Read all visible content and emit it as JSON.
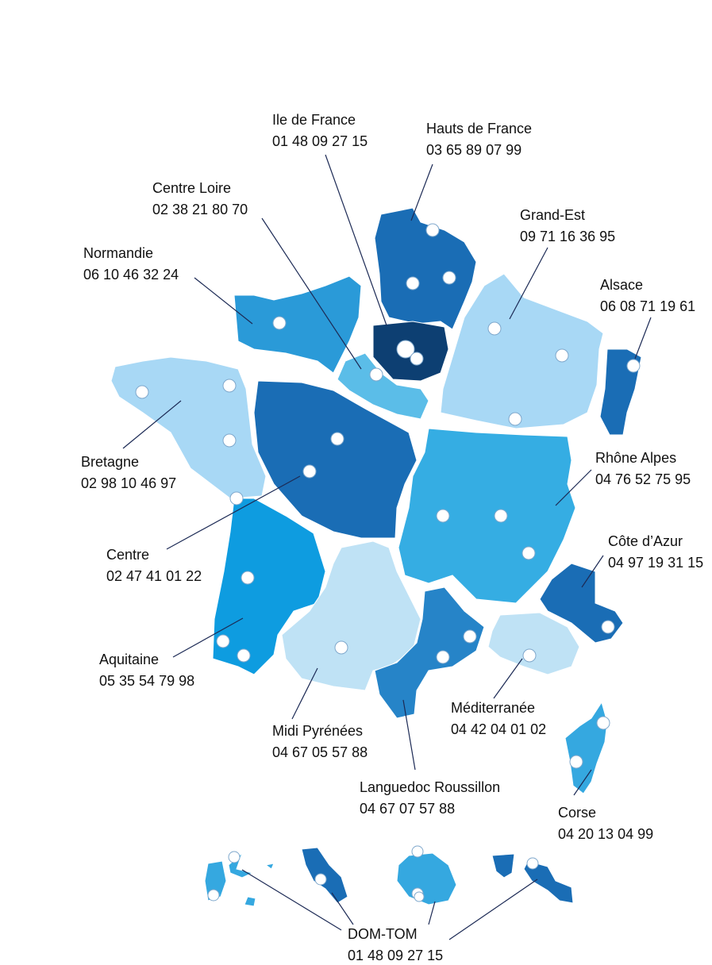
{
  "regions": [
    {
      "name": "Ile de France",
      "phone": "01 48 09 27 15"
    },
    {
      "name": "Hauts de France",
      "phone": "03 65 89 07 99"
    },
    {
      "name": "Centre Loire",
      "phone": "02 38 21 80 70"
    },
    {
      "name": "Grand-Est",
      "phone": "09 71 16 36 95"
    },
    {
      "name": "Normandie",
      "phone": "06 10 46 32 24"
    },
    {
      "name": "Alsace",
      "phone": "06 08 71 19 61"
    },
    {
      "name": "Bretagne",
      "phone": "02 98 10 46 97"
    },
    {
      "name": "Rhône Alpes",
      "phone": "04 76 52 75 95"
    },
    {
      "name": "Centre",
      "phone": "02 47 41 01 22"
    },
    {
      "name": "Côte d’Azur",
      "phone": "04 97 19 31 15"
    },
    {
      "name": "Aquitaine",
      "phone": "05 35 54 79 98"
    },
    {
      "name": "Midi Pyrénées",
      "phone": "04 67 05 57 88"
    },
    {
      "name": "Méditerranée",
      "phone": "04 42 04 01 02"
    },
    {
      "name": "Languedoc Roussillon",
      "phone": "04 67 07 57 88"
    },
    {
      "name": "Corse",
      "phone": "04 20 13 04 99"
    },
    {
      "name": "DOM-TOM",
      "phone": "01 48 09 27 15"
    }
  ]
}
